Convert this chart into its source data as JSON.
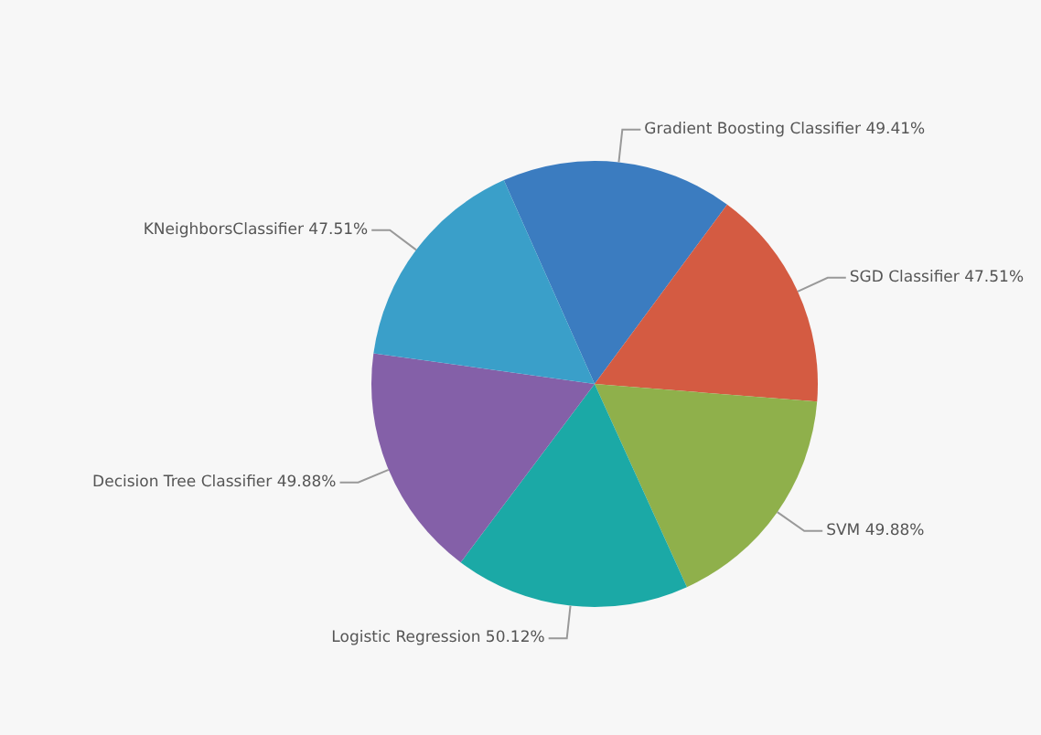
{
  "chart_data": {
    "type": "pie",
    "categories": [
      "Gradient Boosting Classifier",
      "SGD Classifier",
      "SVM",
      "Logistic Regression",
      "Decision Tree Classifier",
      "KNeighborsClassifier"
    ],
    "values": [
      49.41,
      47.51,
      49.88,
      50.12,
      49.88,
      47.51
    ],
    "value_labels": [
      "49.41%",
      "47.51%",
      "49.88%",
      "50.12%",
      "49.88%",
      "47.51%"
    ],
    "colors": [
      "#3b7cc0",
      "#d45b42",
      "#8fb04b",
      "#1ba9a6",
      "#8460a8",
      "#3a9fc9"
    ],
    "legend": false
  }
}
